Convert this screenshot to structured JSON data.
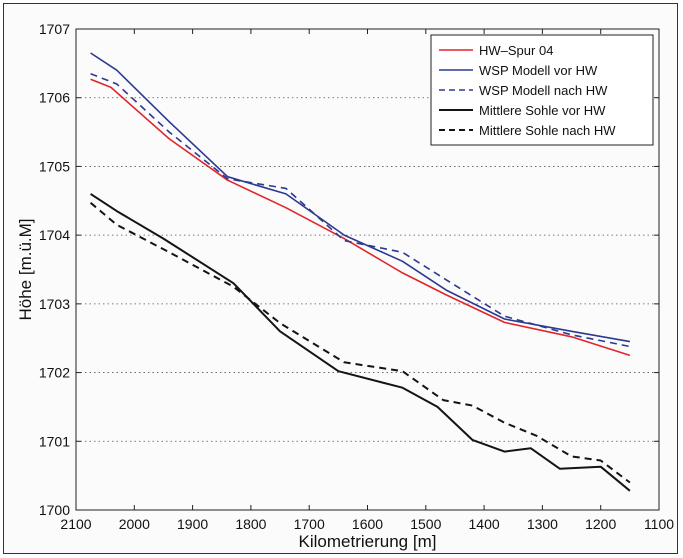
{
  "chart_data": {
    "type": "line",
    "title": "",
    "xlabel": "Kilometrierung [m]",
    "ylabel": "Höhe [m.ü.M]",
    "xlim": [
      2100,
      1100
    ],
    "ylim": [
      1700,
      1707
    ],
    "x_reversed": true,
    "grid": "dotted-horizontal",
    "legend_position": "top-right",
    "xticks": [
      "2100",
      "2000",
      "1900",
      "1800",
      "1700",
      "1600",
      "1500",
      "1400",
      "1300",
      "1200",
      "1100"
    ],
    "yticks": [
      "1700",
      "1701",
      "1702",
      "1703",
      "1704",
      "1705",
      "1706",
      "1707"
    ],
    "series": [
      {
        "name": "HW–Spur 04",
        "color": "#e0262c",
        "dash": "solid",
        "x": [
          2075,
          2040,
          1940,
          1840,
          1740,
          1640,
          1540,
          1465,
          1365,
          1250,
          1150
        ],
        "y": [
          1706.27,
          1706.15,
          1705.4,
          1704.8,
          1704.4,
          1703.95,
          1703.45,
          1703.13,
          1702.73,
          1702.52,
          1702.25
        ]
      },
      {
        "name": "WSP Modell vor HW",
        "color": "#2b3a8f",
        "dash": "solid",
        "x": [
          2075,
          2030,
          1940,
          1840,
          1740,
          1640,
          1540,
          1465,
          1365,
          1250,
          1150
        ],
        "y": [
          1706.65,
          1706.4,
          1705.65,
          1704.85,
          1704.6,
          1704.0,
          1703.62,
          1703.2,
          1702.78,
          1702.6,
          1702.45
        ]
      },
      {
        "name": "WSP Modell nach HW",
        "color": "#2b3a8f",
        "dash": "dashed",
        "x": [
          2075,
          2030,
          1940,
          1840,
          1740,
          1640,
          1540,
          1465,
          1365,
          1250,
          1150
        ],
        "y": [
          1706.35,
          1706.2,
          1705.5,
          1704.82,
          1704.68,
          1703.92,
          1703.75,
          1703.35,
          1702.82,
          1702.55,
          1702.38
        ]
      },
      {
        "name": "Mittlere Sohle vor HW",
        "color": "#141414",
        "dash": "solid",
        "x": [
          2075,
          2030,
          1950,
          1830,
          1750,
          1650,
          1540,
          1480,
          1420,
          1365,
          1320,
          1270,
          1200,
          1150
        ],
        "y": [
          1704.6,
          1704.35,
          1703.95,
          1703.3,
          1702.6,
          1702.02,
          1701.78,
          1701.5,
          1701.02,
          1700.85,
          1700.9,
          1700.6,
          1700.63,
          1700.28
        ]
      },
      {
        "name": "Mittlere Sohle nach HW",
        "color": "#141414",
        "dash": "dashed",
        "x": [
          2075,
          2030,
          1940,
          1830,
          1750,
          1640,
          1540,
          1470,
          1420,
          1365,
          1310,
          1250,
          1200,
          1150
        ],
        "y": [
          1704.47,
          1704.15,
          1703.75,
          1703.25,
          1702.72,
          1702.15,
          1702.02,
          1701.6,
          1701.52,
          1701.27,
          1701.08,
          1700.78,
          1700.72,
          1700.4
        ]
      }
    ]
  }
}
